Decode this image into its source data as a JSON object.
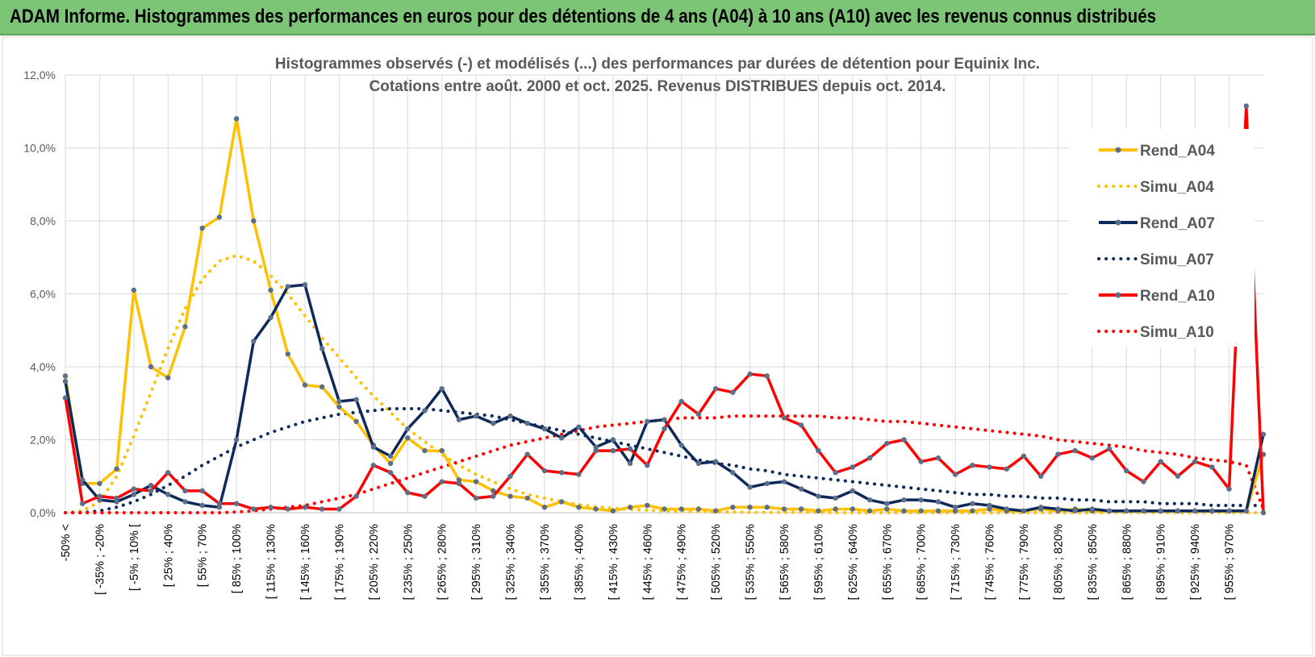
{
  "header": {
    "title": "ADAM Informe. Histogrammes des performances en euros pour des détentions de 4 ans (A04) à 10 ans (A10) avec les revenus connus distribués",
    "bar_color": "#7cc576"
  },
  "chart_data": {
    "type": "line",
    "title_lines": [
      "Histogrammes observés (-) et modélisés (...) des performances par durées de détention pour Equinix Inc.",
      "Cotations entre août. 2000 et oct. 2025.  Revenus DISTRIBUES depuis oct. 2014."
    ],
    "xlabel": "",
    "ylabel": "",
    "ylim": [
      0,
      12
    ],
    "y_ticks": [
      "0,0%",
      "2,0%",
      "4,0%",
      "6,0%",
      "8,0%",
      "10,0%",
      "12,0%"
    ],
    "grid": true,
    "legend_position": "right",
    "x_tick_labels": [
      "-50% <",
      "[ -35% ; -20%",
      "[ -5% ; 10% [",
      "[ 25% ; 40%",
      "[ 55% ; 70%",
      "[ 85% ; 100%",
      "[ 115% ; 130%",
      "[ 145% ; 160%",
      "[ 175% ; 190%",
      "[ 205% ; 220%",
      "[ 235% ; 250%",
      "[ 265% ; 280%",
      "[ 295% ; 310%",
      "[ 325% ; 340%",
      "[ 355% ; 370%",
      "[ 385% ; 400%",
      "[ 415% ; 430%",
      "[ 445% ; 460%",
      "[ 475% ; 490%",
      "[ 505% ; 520%",
      "[ 535% ; 550%",
      "[ 565% ; 580%",
      "[ 595% ; 610%",
      "[ 625% ; 640%",
      "[ 655% ; 670%",
      "[ 685% ; 700%",
      "[ 715% ; 730%",
      "[ 745% ; 760%",
      "[ 775% ; 790%",
      "[ 805% ; 820%",
      "[ 835% ; 850%",
      "[ 865% ; 880%",
      "[ 895% ; 910%",
      "[ 925% ; 940%",
      "[ 955% ; 970%"
    ],
    "series": [
      {
        "name": "Rend_A04",
        "color": "#ffc000",
        "style": "solid",
        "values": [
          3.75,
          0.8,
          0.8,
          1.2,
          6.1,
          4.0,
          3.7,
          5.1,
          7.8,
          8.1,
          10.8,
          8.0,
          6.1,
          4.35,
          3.5,
          3.45,
          2.9,
          2.5,
          1.85,
          1.35,
          2.05,
          1.7,
          1.7,
          0.9,
          0.85,
          0.6,
          0.45,
          0.4,
          0.15,
          0.3,
          0.15,
          0.1,
          0.05,
          0.15,
          0.2,
          0.1,
          0.1,
          0.1,
          0.05,
          0.15,
          0.15,
          0.15,
          0.1,
          0.1,
          0.05,
          0.1,
          0.1,
          0.05,
          0.1,
          0.05,
          0.05,
          0.05,
          0.05,
          0.05,
          0.1,
          0.05,
          0.05,
          0.1,
          0.05,
          0.1,
          0.05,
          0.05,
          0.05,
          0.05,
          0.05,
          0.05,
          0.05,
          0.05,
          0.05,
          0.05,
          1.6
        ]
      },
      {
        "name": "Simu_A04",
        "color": "#ffc000",
        "style": "dotted",
        "values": [
          0.0,
          0.05,
          0.3,
          1.0,
          2.1,
          3.3,
          4.5,
          5.6,
          6.4,
          6.9,
          7.05,
          6.9,
          6.5,
          6.0,
          5.4,
          4.8,
          4.25,
          3.7,
          3.2,
          2.75,
          2.3,
          1.95,
          1.6,
          1.3,
          1.05,
          0.85,
          0.65,
          0.5,
          0.4,
          0.3,
          0.22,
          0.16,
          0.12,
          0.09,
          0.07,
          0.05,
          0.04,
          0.03,
          0.02,
          0.02,
          0.01,
          0.01,
          0.01,
          0.01,
          0.01,
          0.0,
          0.0,
          0.0,
          0.0,
          0.0,
          0.0,
          0.0,
          0.0,
          0.0,
          0.0,
          0.0,
          0.0,
          0.0,
          0.0,
          0.0,
          0.0,
          0.0,
          0.0,
          0.0,
          0.0,
          0.0,
          0.0,
          0.0,
          0.0,
          0.0,
          0.0
        ]
      },
      {
        "name": "Rend_A07",
        "color": "#0e2a5a",
        "style": "solid",
        "values": [
          3.6,
          0.9,
          0.35,
          0.3,
          0.5,
          0.75,
          0.5,
          0.3,
          0.2,
          0.15,
          2.0,
          4.7,
          5.35,
          6.2,
          6.25,
          4.5,
          3.05,
          3.1,
          1.8,
          1.55,
          2.3,
          2.8,
          3.4,
          2.55,
          2.65,
          2.45,
          2.65,
          2.45,
          2.3,
          2.05,
          2.35,
          1.8,
          2.0,
          1.35,
          2.5,
          2.55,
          1.85,
          1.35,
          1.4,
          1.1,
          0.7,
          0.8,
          0.85,
          0.65,
          0.45,
          0.4,
          0.6,
          0.35,
          0.25,
          0.35,
          0.35,
          0.3,
          0.15,
          0.25,
          0.2,
          0.1,
          0.05,
          0.15,
          0.1,
          0.05,
          0.1,
          0.05,
          0.05,
          0.05,
          0.05,
          0.05,
          0.05,
          0.05,
          0.05,
          0.05,
          2.15
        ]
      },
      {
        "name": "Simu_A07",
        "color": "#0e2a5a",
        "style": "dotted",
        "values": [
          0.0,
          0.0,
          0.05,
          0.15,
          0.3,
          0.5,
          0.75,
          1.0,
          1.3,
          1.55,
          1.8,
          2.0,
          2.2,
          2.35,
          2.5,
          2.6,
          2.7,
          2.75,
          2.8,
          2.85,
          2.85,
          2.85,
          2.8,
          2.75,
          2.7,
          2.65,
          2.55,
          2.45,
          2.35,
          2.25,
          2.15,
          2.05,
          1.95,
          1.85,
          1.75,
          1.65,
          1.55,
          1.45,
          1.35,
          1.3,
          1.2,
          1.15,
          1.05,
          1.0,
          0.95,
          0.9,
          0.85,
          0.8,
          0.75,
          0.7,
          0.65,
          0.6,
          0.55,
          0.5,
          0.5,
          0.45,
          0.45,
          0.4,
          0.4,
          0.35,
          0.35,
          0.3,
          0.3,
          0.3,
          0.25,
          0.25,
          0.25,
          0.2,
          0.2,
          0.2,
          0.2
        ]
      },
      {
        "name": "Rend_A10",
        "color": "#ff0000",
        "style": "solid",
        "values": [
          3.15,
          0.25,
          0.45,
          0.4,
          0.65,
          0.6,
          1.1,
          0.6,
          0.6,
          0.25,
          0.25,
          0.1,
          0.15,
          0.1,
          0.15,
          0.1,
          0.1,
          0.45,
          1.3,
          1.1,
          0.55,
          0.45,
          0.85,
          0.8,
          0.4,
          0.45,
          1.0,
          1.6,
          1.15,
          1.1,
          1.05,
          1.7,
          1.7,
          1.75,
          1.3,
          2.3,
          3.05,
          2.7,
          3.4,
          3.3,
          3.8,
          3.75,
          2.6,
          2.4,
          1.7,
          1.1,
          1.25,
          1.5,
          1.9,
          2.0,
          1.4,
          1.5,
          1.05,
          1.3,
          1.25,
          1.2,
          1.55,
          1.0,
          1.6,
          1.7,
          1.5,
          1.75,
          1.15,
          0.85,
          1.4,
          1.0,
          1.4,
          1.25,
          0.65,
          11.15,
          0.0
        ]
      },
      {
        "name": "Simu_A10",
        "color": "#ff0000",
        "style": "dotted",
        "values": [
          0.0,
          0.0,
          0.0,
          0.0,
          0.0,
          0.0,
          0.0,
          0.0,
          0.0,
          0.0,
          0.02,
          0.05,
          0.1,
          0.15,
          0.2,
          0.3,
          0.4,
          0.5,
          0.65,
          0.8,
          0.95,
          1.1,
          1.25,
          1.4,
          1.55,
          1.7,
          1.85,
          1.95,
          2.05,
          2.15,
          2.25,
          2.35,
          2.4,
          2.45,
          2.5,
          2.55,
          2.6,
          2.6,
          2.6,
          2.65,
          2.65,
          2.65,
          2.65,
          2.65,
          2.65,
          2.6,
          2.6,
          2.55,
          2.5,
          2.5,
          2.45,
          2.4,
          2.35,
          2.3,
          2.25,
          2.2,
          2.15,
          2.1,
          2.0,
          1.95,
          1.9,
          1.85,
          1.8,
          1.7,
          1.65,
          1.6,
          1.5,
          1.45,
          1.4,
          1.3,
          0.1
        ]
      }
    ]
  }
}
